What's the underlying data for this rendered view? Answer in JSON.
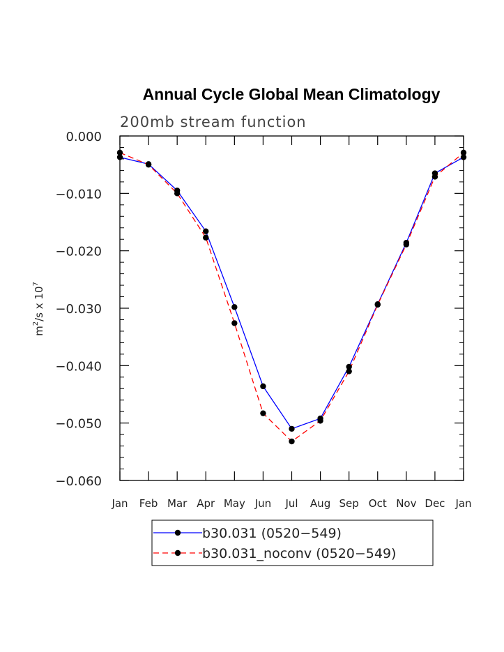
{
  "chart_data": {
    "type": "line",
    "title": "Annual Cycle Global Mean Climatology",
    "subtitle": "200mb stream function",
    "ylabel_base": "m",
    "ylabel_sup": "2",
    "ylabel_mid": "/s x 10",
    "ylabel_exp": "7",
    "categories": [
      "Jan",
      "Feb",
      "Mar",
      "Apr",
      "May",
      "Jun",
      "Jul",
      "Aug",
      "Sep",
      "Oct",
      "Nov",
      "Dec",
      "Jan"
    ],
    "ylim": [
      -0.06,
      0.0
    ],
    "yticks": [
      "0.000",
      "−0.010",
      "−0.020",
      "−0.030",
      "−0.040",
      "−0.050",
      "−0.060"
    ],
    "ytick_values": [
      0.0,
      -0.01,
      -0.02,
      -0.03,
      -0.04,
      -0.05,
      -0.06
    ],
    "series": [
      {
        "name": "b30.031 (0520−549)",
        "color": "#0000ff",
        "dash": "solid",
        "values": [
          -0.0037,
          -0.0049,
          -0.0095,
          -0.0166,
          -0.0298,
          -0.0436,
          -0.051,
          -0.0492,
          -0.0402,
          -0.0293,
          -0.0186,
          -0.0065,
          -0.0037
        ]
      },
      {
        "name": "b30.031_noconv (0520−549)",
        "color": "#ff0000",
        "dash": "dashed",
        "values": [
          -0.0029,
          -0.005,
          -0.01,
          -0.0177,
          -0.0326,
          -0.0483,
          -0.0532,
          -0.0496,
          -0.041,
          -0.0294,
          -0.0189,
          -0.0071,
          -0.0029
        ]
      }
    ],
    "legend_position": "bottom",
    "grid": false
  }
}
